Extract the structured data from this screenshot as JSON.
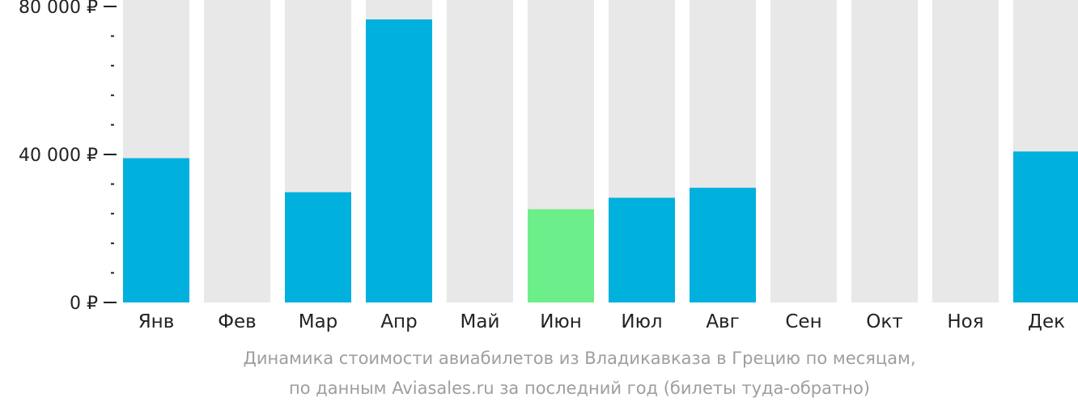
{
  "chart_data": {
    "type": "bar",
    "categories": [
      "Янв",
      "Фев",
      "Мар",
      "Апр",
      "Май",
      "Июн",
      "Июл",
      "Авг",
      "Сен",
      "Окт",
      "Ноя",
      "Дек"
    ],
    "values": [
      39000,
      null,
      29800,
      76500,
      null,
      25200,
      28300,
      31000,
      null,
      null,
      null,
      40800
    ],
    "ylim": [
      0,
      80000
    ],
    "yticks": [
      {
        "value": 0,
        "label": "0 ₽"
      },
      {
        "value": 40000,
        "label": "40 000 ₽"
      },
      {
        "value": 80000,
        "label": "80 000 ₽"
      }
    ],
    "minor_tick_step": 8000,
    "highlight_index": 5,
    "colors": {
      "bar": "#00b0dd",
      "highlight": "#6cef8a",
      "background_bar": "#e8e8e8",
      "axis_text": "#222222",
      "caption": "#9e9e9e"
    },
    "caption_lines": [
      "Динамика стоимости авиабилетов из Владикавказа в Грецию по месяцам,",
      "по данным Aviasales.ru за последний год (билеты туда-обратно)"
    ]
  }
}
